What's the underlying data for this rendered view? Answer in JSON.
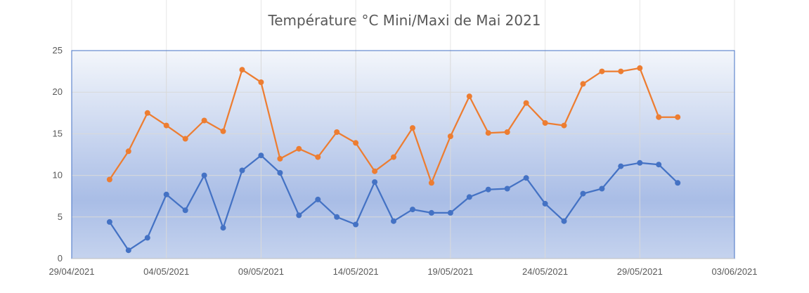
{
  "chart_data": {
    "type": "line",
    "title": "Température °C Mini/Maxi de Mai 2021",
    "xlabel": "",
    "ylabel": "",
    "ylim": [
      0,
      25
    ],
    "y_ticks": [
      0,
      5,
      10,
      15,
      20,
      25
    ],
    "x_range": [
      "2021-04-29",
      "2021-06-03"
    ],
    "x_tick_labels": [
      "29/04/2021",
      "04/05/2021",
      "09/05/2021",
      "14/05/2021",
      "19/05/2021",
      "24/05/2021",
      "29/05/2021",
      "03/06/2021"
    ],
    "x": [
      "2021-05-01",
      "2021-05-02",
      "2021-05-03",
      "2021-05-04",
      "2021-05-05",
      "2021-05-06",
      "2021-05-07",
      "2021-05-08",
      "2021-05-09",
      "2021-05-10",
      "2021-05-11",
      "2021-05-12",
      "2021-05-13",
      "2021-05-14",
      "2021-05-15",
      "2021-05-16",
      "2021-05-17",
      "2021-05-18",
      "2021-05-19",
      "2021-05-20",
      "2021-05-21",
      "2021-05-22",
      "2021-05-23",
      "2021-05-24",
      "2021-05-25",
      "2021-05-26",
      "2021-05-27",
      "2021-05-28",
      "2021-05-29",
      "2021-05-30",
      "2021-05-31"
    ],
    "series": [
      {
        "color": "#ED7D31",
        "values": [
          9.5,
          12.9,
          17.5,
          16.0,
          14.4,
          16.6,
          15.3,
          22.7,
          21.2,
          12.0,
          13.2,
          12.2,
          15.2,
          13.9,
          10.5,
          12.2,
          15.7,
          9.1,
          14.7,
          19.5,
          15.1,
          15.2,
          18.7,
          16.3,
          16.0,
          21.0,
          22.5,
          22.5,
          22.9,
          17.0,
          17.0
        ]
      },
      {
        "color": "#4472C4",
        "values": [
          4.4,
          1.0,
          2.5,
          7.7,
          5.8,
          10.0,
          3.7,
          10.6,
          12.4,
          10.3,
          5.2,
          7.1,
          5.0,
          4.1,
          9.2,
          4.5,
          5.9,
          5.5,
          5.5,
          7.4,
          8.3,
          8.4,
          9.7,
          6.6,
          4.5,
          7.8,
          8.4,
          11.1,
          11.5,
          11.3,
          9.1
        ]
      }
    ],
    "grid": true,
    "legend": "none"
  }
}
